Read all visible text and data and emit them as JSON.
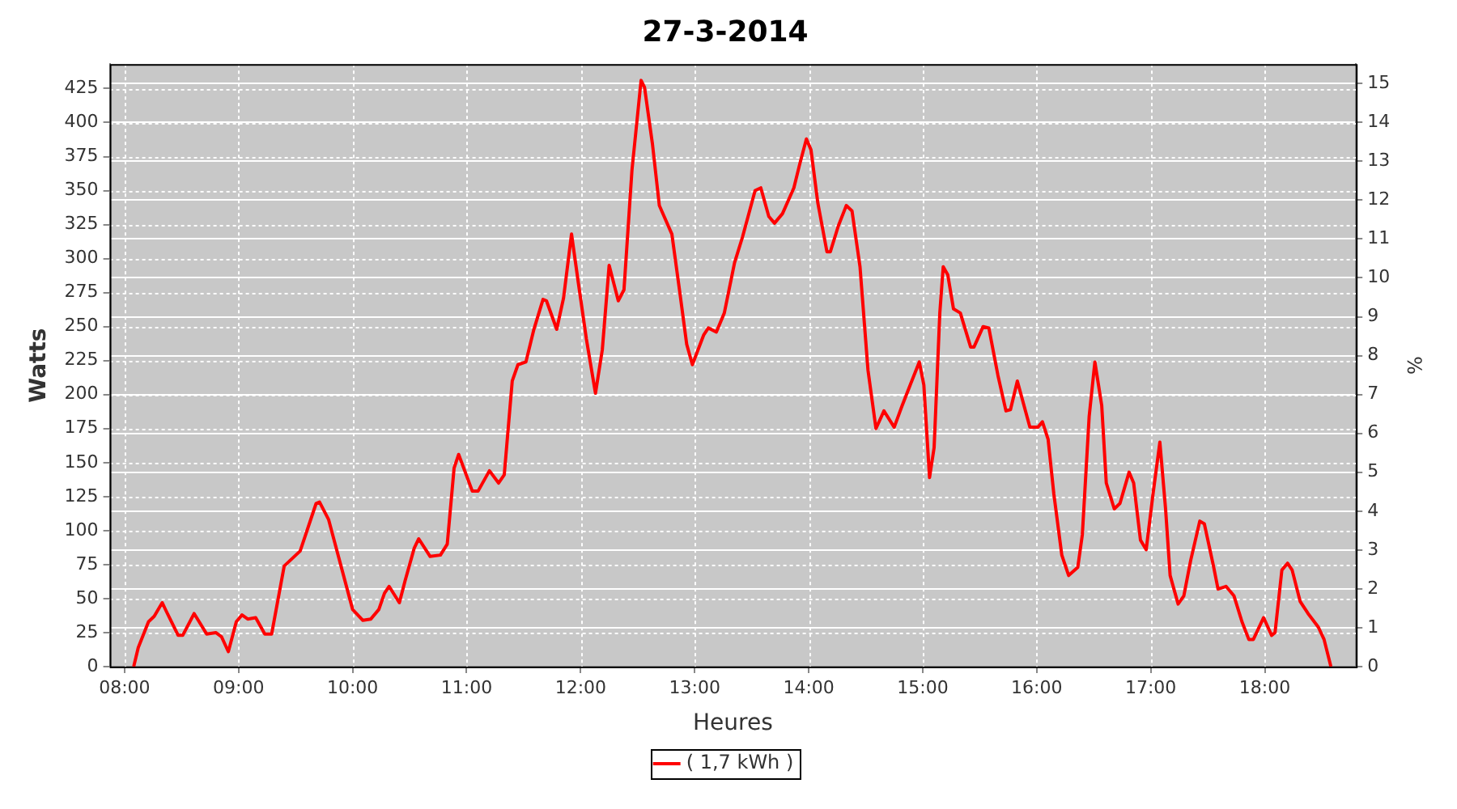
{
  "chart_data": {
    "type": "line",
    "title": "27-3-2014",
    "xlabel": "Heures",
    "ylabel": "Watts",
    "y2label": "%",
    "x": [
      8.08,
      8.12,
      8.21,
      8.26,
      8.33,
      8.37,
      8.47,
      8.51,
      8.61,
      8.72,
      8.8,
      8.85,
      8.91,
      8.98,
      9.03,
      9.08,
      9.15,
      9.23,
      9.29,
      9.4,
      9.54,
      9.68,
      9.71,
      9.79,
      9.86,
      10.0,
      10.09,
      10.16,
      10.23,
      10.28,
      10.32,
      10.41,
      10.46,
      10.54,
      10.58,
      10.68,
      10.77,
      10.83,
      10.89,
      10.93,
      11.05,
      11.1,
      11.2,
      11.28,
      11.33,
      11.4,
      11.45,
      11.52,
      11.59,
      11.67,
      11.7,
      11.79,
      11.85,
      11.92,
      11.98,
      12.05,
      12.13,
      12.19,
      12.25,
      12.33,
      12.38,
      12.45,
      12.53,
      12.56,
      12.63,
      12.69,
      12.8,
      12.87,
      12.93,
      12.98,
      13.08,
      13.12,
      13.19,
      13.26,
      13.35,
      13.42,
      13.53,
      13.58,
      13.65,
      13.7,
      13.77,
      13.87,
      13.92,
      13.98,
      14.02,
      14.08,
      14.16,
      14.19,
      14.26,
      14.33,
      14.38,
      14.45,
      14.52,
      14.59,
      14.66,
      14.75,
      14.82,
      14.89,
      14.97,
      15.01,
      15.06,
      15.1,
      15.15,
      15.18,
      15.22,
      15.27,
      15.33,
      15.42,
      15.45,
      15.53,
      15.58,
      15.66,
      15.73,
      15.77,
      15.83,
      15.94,
      16.01,
      16.05,
      16.1,
      16.15,
      16.22,
      16.28,
      16.36,
      16.4,
      16.46,
      16.51,
      16.57,
      16.61,
      16.68,
      16.73,
      16.81,
      16.85,
      16.91,
      16.96,
      17.02,
      17.08,
      17.13,
      17.17,
      17.24,
      17.29,
      17.35,
      17.43,
      17.47,
      17.55,
      17.59,
      17.66,
      17.73,
      17.8,
      17.86,
      17.9,
      17.99,
      18.06,
      18.09,
      18.15,
      18.2,
      18.24,
      18.31,
      18.38,
      18.47,
      18.52,
      18.58
    ],
    "series": [
      {
        "name": "( 1,7 kWh )",
        "color": "#ff0000",
        "values": [
          0,
          14,
          33,
          37,
          47,
          40,
          23,
          23,
          39,
          24,
          25,
          22,
          11,
          33,
          38,
          35,
          36,
          24,
          24,
          74,
          85,
          120,
          121,
          108,
          86,
          42,
          34,
          35,
          42,
          54,
          59,
          47,
          63,
          87,
          94,
          81,
          82,
          90,
          146,
          156,
          129,
          129,
          144,
          135,
          141,
          210,
          222,
          224,
          248,
          270,
          269,
          248,
          271,
          318,
          282,
          241,
          201,
          233,
          295,
          269,
          277,
          365,
          431,
          426,
          384,
          339,
          318,
          275,
          237,
          222,
          244,
          249,
          246,
          260,
          297,
          316,
          350,
          352,
          331,
          326,
          333,
          352,
          369,
          388,
          380,
          341,
          305,
          305,
          324,
          339,
          335,
          294,
          218,
          175,
          188,
          176,
          192,
          207,
          224,
          207,
          139,
          161,
          260,
          294,
          288,
          263,
          260,
          235,
          235,
          250,
          249,
          214,
          188,
          189,
          210,
          176,
          176,
          180,
          167,
          127,
          82,
          67,
          73,
          97,
          184,
          224,
          192,
          135,
          116,
          120,
          143,
          135,
          93,
          86,
          127,
          165,
          116,
          67,
          46,
          52,
          78,
          107,
          105,
          74,
          57,
          59,
          52,
          33,
          20,
          20,
          36,
          23,
          25,
          71,
          76,
          71,
          48,
          39,
          29,
          20,
          0
        ]
      }
    ],
    "xlim": [
      7.87,
      18.8
    ],
    "xticks": [
      {
        "value": 8,
        "label": "08:00"
      },
      {
        "value": 9,
        "label": "09:00"
      },
      {
        "value": 10,
        "label": "10:00"
      },
      {
        "value": 11,
        "label": "11:00"
      },
      {
        "value": 12,
        "label": "12:00"
      },
      {
        "value": 13,
        "label": "13:00"
      },
      {
        "value": 14,
        "label": "14:00"
      },
      {
        "value": 15,
        "label": "15:00"
      },
      {
        "value": 16,
        "label": "16:00"
      },
      {
        "value": 17,
        "label": "17:00"
      },
      {
        "value": 18,
        "label": "18:00"
      }
    ],
    "ylim": [
      0,
      443
    ],
    "yticks": [
      0,
      25,
      50,
      75,
      100,
      125,
      150,
      175,
      200,
      225,
      250,
      275,
      300,
      325,
      350,
      375,
      400,
      425
    ],
    "y2lim": [
      0,
      15.5
    ],
    "y2ticks": [
      0,
      1,
      2,
      3,
      4,
      5,
      6,
      7,
      8,
      9,
      10,
      11,
      12,
      13,
      14,
      15
    ],
    "grid": true,
    "legend": "bottom",
    "marker": "none",
    "line_style": "solid"
  }
}
